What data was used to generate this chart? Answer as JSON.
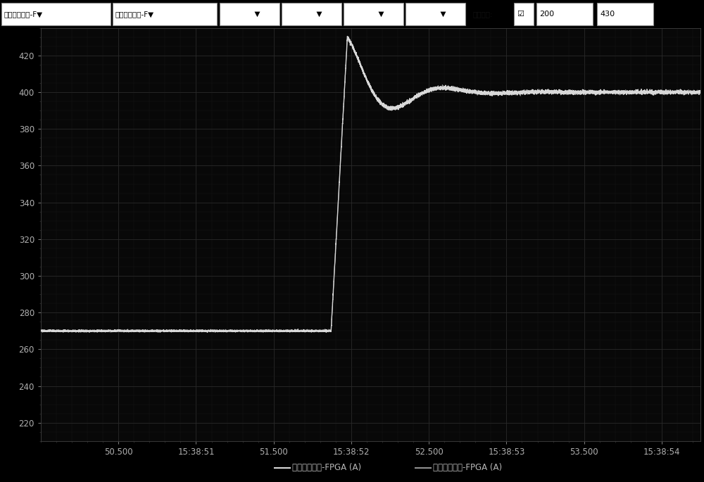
{
  "plot_bg": "#080808",
  "grid_color_major": "#2a2a2a",
  "grid_color_minor": "#181818",
  "line_color_white": "#d8d8d8",
  "line_color_gray": "#909090",
  "ylabel_ticks": [
    220,
    240,
    260,
    280,
    300,
    320,
    340,
    360,
    380,
    400,
    420
  ],
  "ymin": 210,
  "ymax": 435,
  "xmin": 50.0,
  "xmax": 54.25,
  "xtick_labels": [
    "50.500",
    "15:38:51",
    "51.500",
    "15:38:52",
    "52.500",
    "15:38:53",
    "53.500",
    "15:38:54"
  ],
  "xtick_positions": [
    50.5,
    51.0,
    51.5,
    52.0,
    52.5,
    53.0,
    53.5,
    54.0
  ],
  "flat_level": 270.0,
  "flat_end": 51.87,
  "peak_val": 430.0,
  "peak_x": 51.975,
  "settle_val": 400.0,
  "omega": 9.5,
  "decay": 4.0,
  "noise_flat": 0.25,
  "noise_rise": 0.4,
  "noise_settle": 0.5
}
